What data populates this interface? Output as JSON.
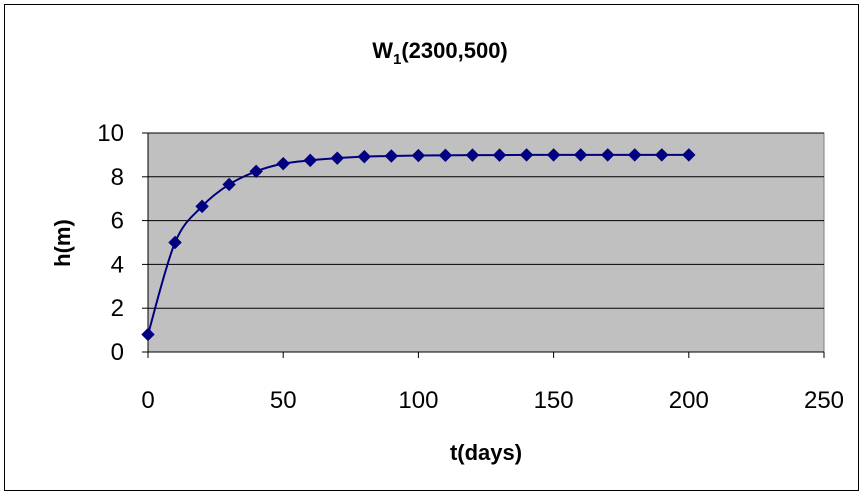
{
  "chart_data": {
    "type": "line",
    "title_main": "W",
    "title_sub": "1",
    "title_rest": "(2300,500)",
    "xlabel": "t(days)",
    "ylabel": "h(m)",
    "xlim": [
      0,
      250
    ],
    "ylim": [
      0,
      10
    ],
    "x_ticks": [
      0,
      50,
      100,
      150,
      200,
      250
    ],
    "y_ticks": [
      0,
      2,
      4,
      6,
      8,
      10
    ],
    "grid": "horizontal",
    "legend": "none",
    "plot_background": "#c0c0c0",
    "series": [
      {
        "color": "#000080",
        "marker": "diamond",
        "smooth": true,
        "x": [
          0,
          10,
          20,
          30,
          40,
          50,
          60,
          70,
          80,
          90,
          100,
          110,
          120,
          130,
          140,
          150,
          160,
          170,
          180,
          190,
          200
        ],
        "y": [
          0.8,
          5.0,
          6.65,
          7.65,
          8.25,
          8.6,
          8.75,
          8.85,
          8.92,
          8.95,
          8.97,
          8.98,
          8.99,
          8.99,
          9.0,
          9.0,
          9.0,
          9.0,
          9.0,
          9.0,
          9.0
        ]
      }
    ]
  }
}
